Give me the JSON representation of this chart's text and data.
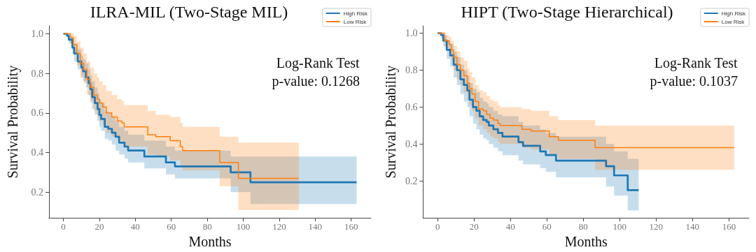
{
  "chart_data": [
    {
      "type": "step",
      "title": "ILRA-MIL (Two-Stage MIL)",
      "xlabel": "Months",
      "ylabel": "Survival Probability",
      "xlim": [
        -8,
        171
      ],
      "xticks": [
        0,
        20,
        40,
        60,
        80,
        100,
        120,
        140,
        160
      ],
      "ylim": [
        0.07,
        1.04
      ],
      "yticks": [
        0.2,
        0.4,
        0.6,
        0.8,
        {
          "value": 1,
          "label": "1.0"
        }
      ],
      "legend": "top right",
      "grid": false,
      "annotations": [
        "Log-Rank Test",
        "p-value: 0.1268"
      ],
      "series": [
        {
          "name": "High Risk",
          "color": "#1f77b4",
          "x": [
            0,
            2,
            3,
            5,
            6,
            8,
            10,
            11,
            12.5,
            14,
            15,
            16,
            17.5,
            19,
            20,
            21,
            23,
            25,
            27,
            29,
            31,
            34,
            36,
            45,
            57,
            62,
            93,
            104,
            163
          ],
          "values": [
            1,
            0.99,
            0.97,
            0.93,
            0.9,
            0.86,
            0.83,
            0.81,
            0.78,
            0.75,
            0.72,
            0.68,
            0.65,
            0.62,
            0.59,
            0.57,
            0.53,
            0.52,
            0.5,
            0.48,
            0.45,
            0.43,
            0.41,
            0.38,
            0.35,
            0.33,
            0.3,
            0.25,
            0.25
          ],
          "upper": [
            1,
            1,
            0.99,
            0.97,
            0.95,
            0.92,
            0.89,
            0.87,
            0.85,
            0.82,
            0.79,
            0.76,
            0.73,
            0.7,
            0.67,
            0.65,
            0.61,
            0.6,
            0.58,
            0.56,
            0.53,
            0.51,
            0.49,
            0.46,
            0.43,
            0.41,
            0.38,
            0.38,
            0.38
          ],
          "lower": [
            1,
            0.98,
            0.95,
            0.9,
            0.86,
            0.82,
            0.78,
            0.76,
            0.73,
            0.69,
            0.66,
            0.62,
            0.59,
            0.56,
            0.53,
            0.51,
            0.47,
            0.46,
            0.44,
            0.41,
            0.39,
            0.37,
            0.35,
            0.32,
            0.29,
            0.27,
            0.2,
            0.14,
            0.14
          ]
        },
        {
          "name": "Low Risk",
          "color": "#ff7f0e",
          "x": [
            0,
            3.8,
            5.6,
            7.5,
            9.4,
            11.3,
            13.1,
            15,
            16.9,
            18.8,
            20,
            21.9,
            23.8,
            26.9,
            30,
            32.5,
            33.8,
            46.9,
            51.3,
            59.4,
            65,
            66.3,
            86.9,
            97.3,
            130.9
          ],
          "values": [
            1,
            0.98,
            0.945,
            0.9,
            0.85,
            0.82,
            0.77,
            0.73,
            0.69,
            0.67,
            0.65,
            0.63,
            0.6,
            0.58,
            0.56,
            0.55,
            0.53,
            0.49,
            0.48,
            0.46,
            0.43,
            0.41,
            0.35,
            0.27,
            0.27
          ],
          "upper": [
            1,
            1,
            0.99,
            0.96,
            0.93,
            0.9,
            0.86,
            0.83,
            0.8,
            0.78,
            0.76,
            0.74,
            0.71,
            0.69,
            0.67,
            0.66,
            0.64,
            0.61,
            0.59,
            0.58,
            0.55,
            0.53,
            0.48,
            0.45,
            0.45
          ],
          "lower": [
            1,
            0.95,
            0.9,
            0.84,
            0.78,
            0.75,
            0.69,
            0.65,
            0.61,
            0.58,
            0.56,
            0.54,
            0.5,
            0.48,
            0.46,
            0.45,
            0.43,
            0.39,
            0.38,
            0.36,
            0.33,
            0.31,
            0.23,
            0.11,
            0.11
          ]
        }
      ]
    },
    {
      "type": "step",
      "title": "HIPT (Two-Stage Hierarchical)",
      "xlabel": "Months",
      "ylabel": "Survival Probability",
      "xlim": [
        -8,
        171
      ],
      "xticks": [
        0,
        20,
        40,
        60,
        80,
        100,
        120,
        140,
        160
      ],
      "ylim": [
        0.0,
        1.04
      ],
      "yticks": [
        0.2,
        0.4,
        0.6,
        0.8,
        {
          "value": 1,
          "label": "1.0"
        }
      ],
      "legend": "top right",
      "grid": false,
      "annotations": [
        "Log-Rank Test",
        "p-value: 0.1037"
      ],
      "series": [
        {
          "name": "High Risk",
          "color": "#1f77b4",
          "x": [
            0,
            1.9,
            3.1,
            5,
            6.9,
            8.8,
            10.6,
            12.5,
            14.4,
            16.3,
            17.5,
            19.4,
            21.3,
            23.1,
            25,
            26.9,
            28.1,
            30.6,
            33.1,
            35.6,
            44.4,
            46.9,
            56.3,
            59.4,
            65,
            92.5,
            96.9,
            104.4,
            110.4
          ],
          "values": [
            1,
            0.99,
            0.96,
            0.91,
            0.88,
            0.83,
            0.8,
            0.75,
            0.72,
            0.69,
            0.64,
            0.6,
            0.58,
            0.55,
            0.53,
            0.52,
            0.5,
            0.48,
            0.46,
            0.44,
            0.41,
            0.39,
            0.36,
            0.34,
            0.31,
            0.28,
            0.23,
            0.15,
            0.15
          ],
          "upper": [
            1,
            1,
            0.99,
            0.96,
            0.94,
            0.9,
            0.87,
            0.83,
            0.8,
            0.77,
            0.73,
            0.7,
            0.68,
            0.65,
            0.63,
            0.62,
            0.6,
            0.58,
            0.56,
            0.55,
            0.52,
            0.5,
            0.48,
            0.46,
            0.44,
            0.4,
            0.36,
            0.32,
            0.32
          ],
          "lower": [
            1,
            0.97,
            0.93,
            0.86,
            0.82,
            0.76,
            0.72,
            0.67,
            0.63,
            0.6,
            0.55,
            0.51,
            0.48,
            0.45,
            0.43,
            0.42,
            0.4,
            0.38,
            0.36,
            0.34,
            0.31,
            0.29,
            0.27,
            0.25,
            0.22,
            0.17,
            0.12,
            0.04,
            0.04
          ]
        },
        {
          "name": "Low Risk",
          "color": "#ff7f0e",
          "x": [
            0,
            2.5,
            3.8,
            6.3,
            7.5,
            8.8,
            10.6,
            12.5,
            14.4,
            16.3,
            17.5,
            18.8,
            20.6,
            22.5,
            25,
            26.9,
            28.8,
            30.6,
            33.1,
            34.4,
            46.3,
            51.3,
            61.3,
            66.3,
            86.5,
            162.9
          ],
          "values": [
            1,
            1,
            0.96,
            0.94,
            0.91,
            0.87,
            0.83,
            0.8,
            0.77,
            0.73,
            0.7,
            0.67,
            0.63,
            0.59,
            0.58,
            0.56,
            0.54,
            0.53,
            0.51,
            0.5,
            0.48,
            0.47,
            0.44,
            0.42,
            0.38,
            0.38
          ],
          "upper": [
            1,
            1,
            0.99,
            0.98,
            0.96,
            0.93,
            0.9,
            0.87,
            0.85,
            0.81,
            0.79,
            0.76,
            0.72,
            0.69,
            0.68,
            0.66,
            0.64,
            0.63,
            0.61,
            0.6,
            0.59,
            0.58,
            0.55,
            0.53,
            0.5,
            0.5
          ],
          "lower": [
            1,
            1,
            0.92,
            0.89,
            0.85,
            0.8,
            0.75,
            0.72,
            0.68,
            0.64,
            0.61,
            0.58,
            0.54,
            0.5,
            0.48,
            0.46,
            0.44,
            0.43,
            0.41,
            0.4,
            0.38,
            0.37,
            0.34,
            0.32,
            0.26,
            0.26
          ]
        }
      ]
    }
  ]
}
